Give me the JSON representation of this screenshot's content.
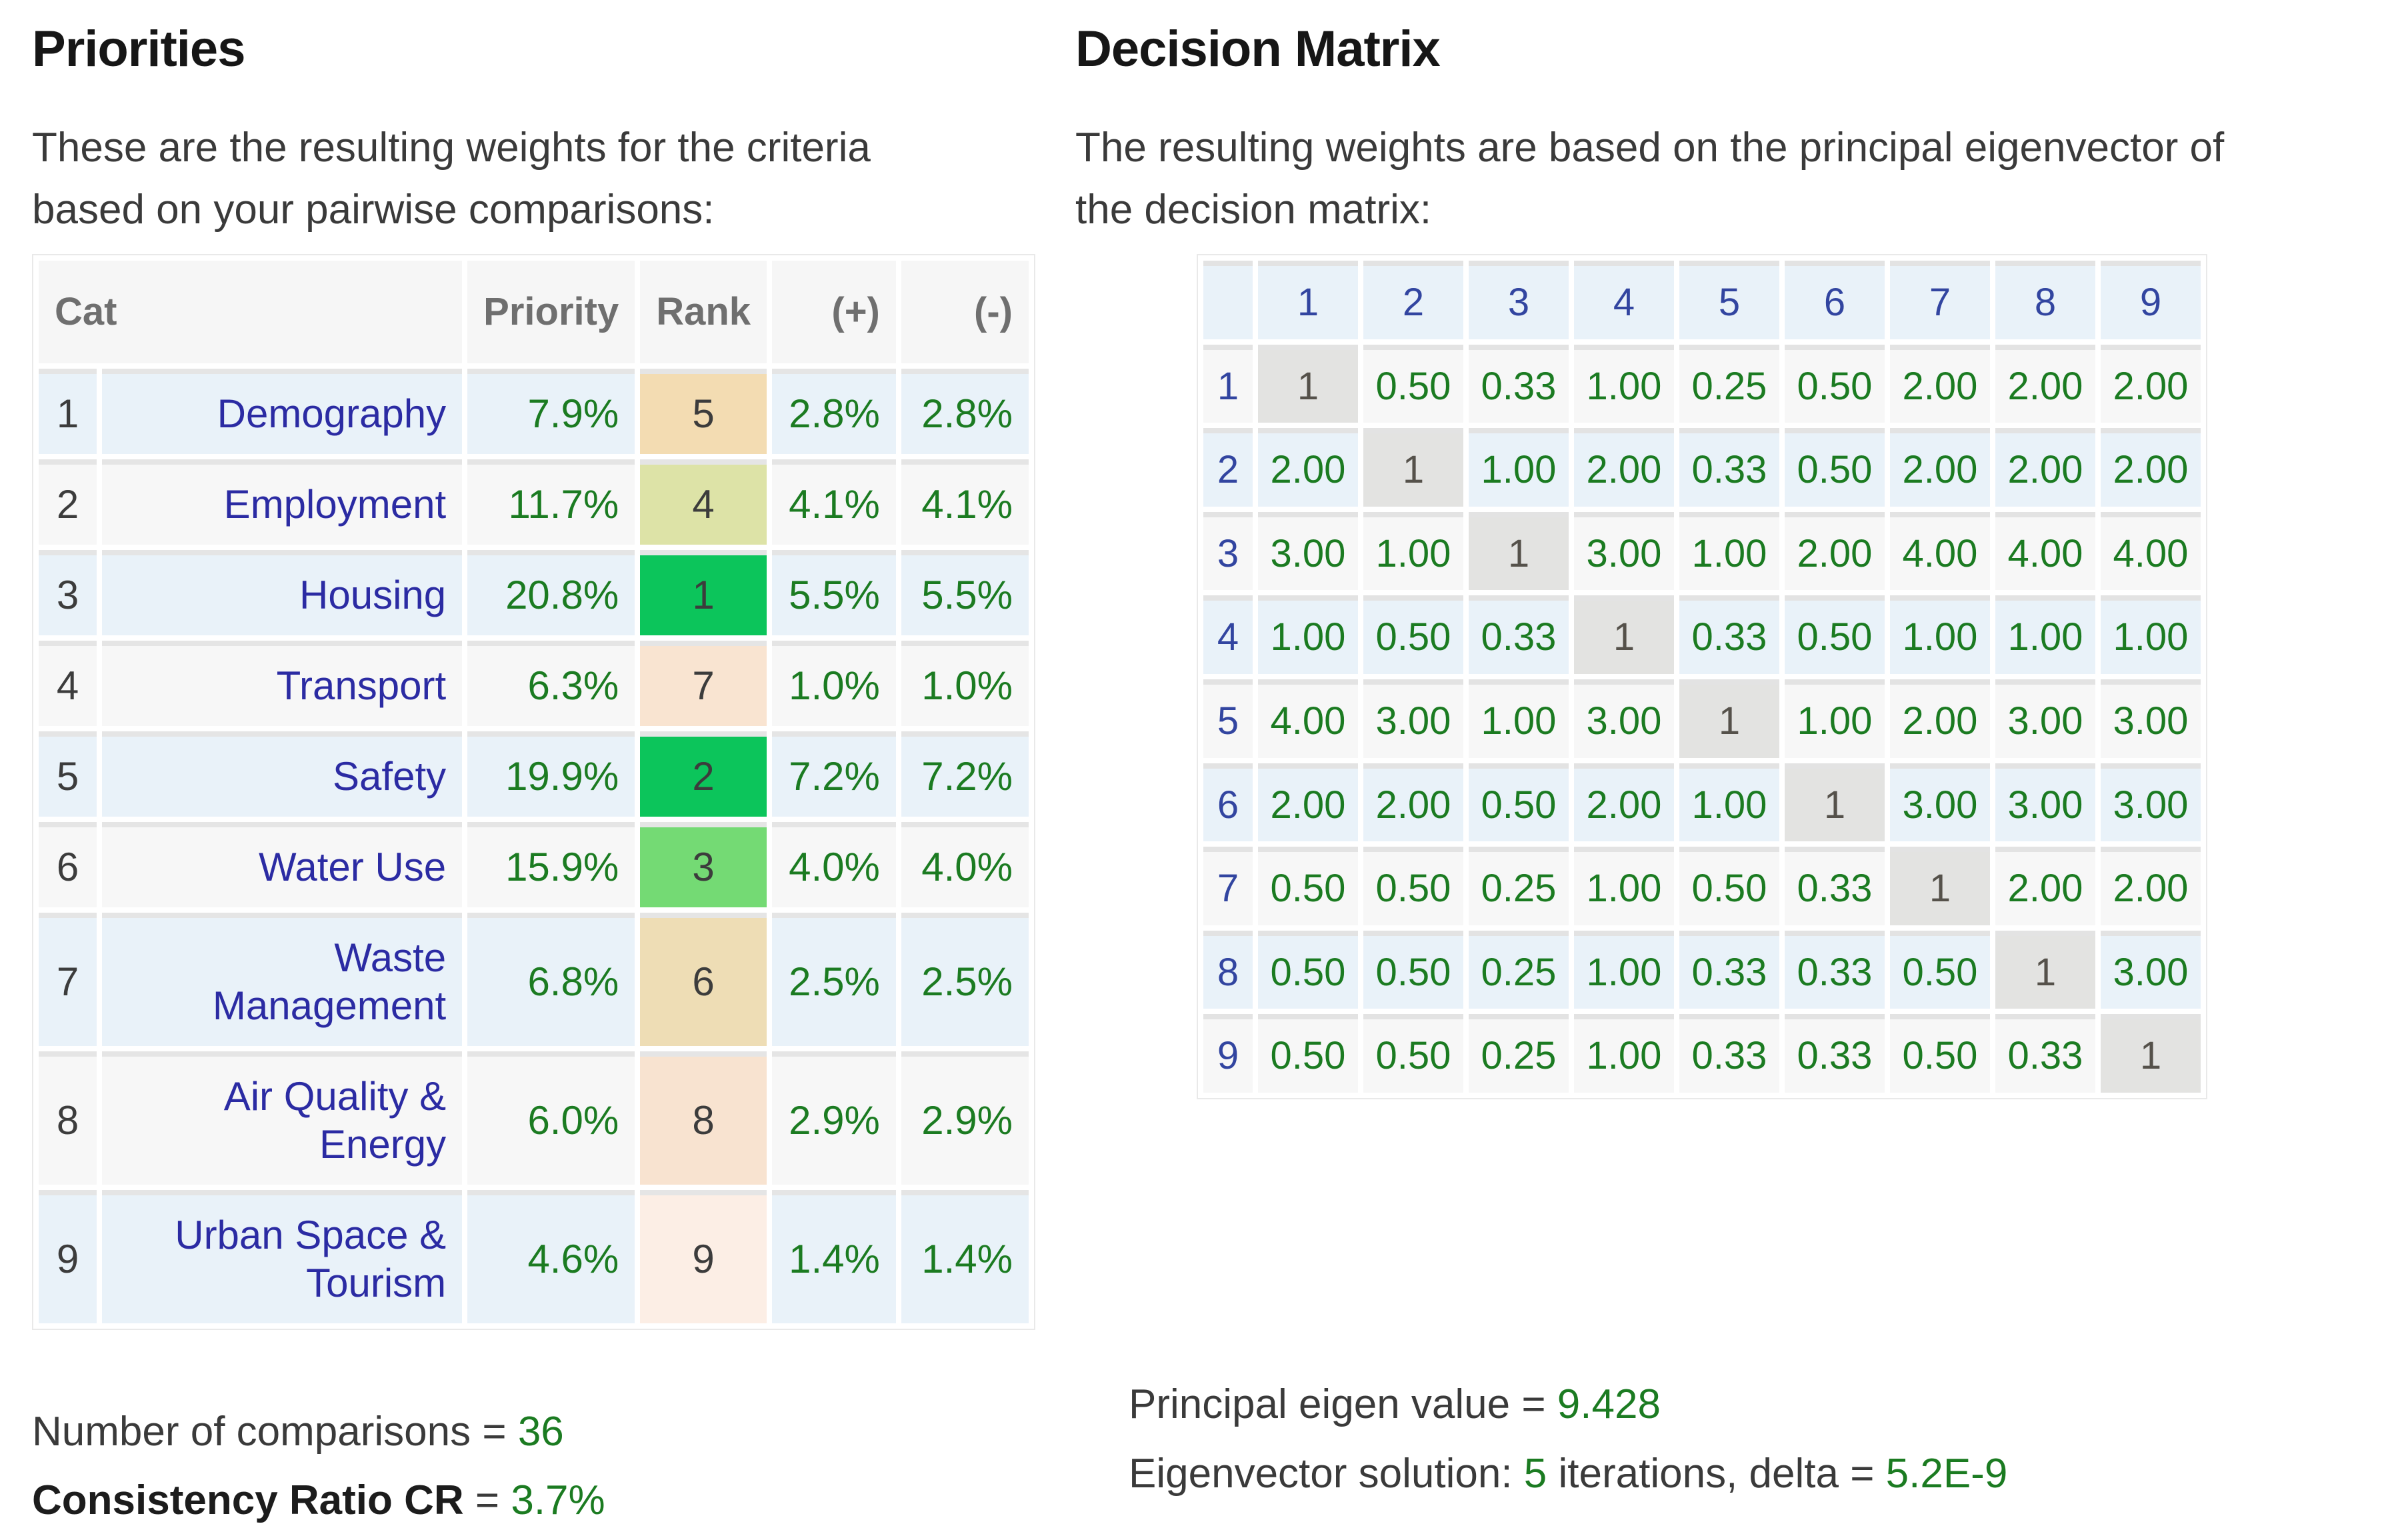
{
  "colors": {
    "value_green": "#1b7b21",
    "category_blue": "#2b2ba3",
    "matrix_label_blue": "#3245a0",
    "row_blue_bg": "#e9f2f9",
    "row_gray_bg": "#f7f7f7",
    "diagonal_bg": "#e3e3e1",
    "header_bg": "#f6f6f6",
    "header_text": "#6f6f6f"
  },
  "left": {
    "title": "Priorities",
    "intro_line1": "These are the resulting weights for the criteria",
    "intro_line2": "based on your pairwise comparisons:",
    "table": {
      "headers": {
        "cat": "Cat",
        "priority": "Priority",
        "rank": "Rank",
        "plus": "(+)",
        "minus": "(-)"
      },
      "rows": [
        {
          "num": "1",
          "name": "Demography",
          "priority": "7.9%",
          "rank": "5",
          "plus": "2.8%",
          "minus": "2.8%",
          "rank_color": "#f3dcb2"
        },
        {
          "num": "2",
          "name": "Employment",
          "priority": "11.7%",
          "rank": "4",
          "plus": "4.1%",
          "minus": "4.1%",
          "rank_color": "#dde3a7"
        },
        {
          "num": "3",
          "name": "Housing",
          "priority": "20.8%",
          "rank": "1",
          "plus": "5.5%",
          "minus": "5.5%",
          "rank_color": "#0cc55b"
        },
        {
          "num": "4",
          "name": "Transport",
          "priority": "6.3%",
          "rank": "7",
          "plus": "1.0%",
          "minus": "1.0%",
          "rank_color": "#f9e4d1"
        },
        {
          "num": "5",
          "name": "Safety",
          "priority": "19.9%",
          "rank": "2",
          "plus": "7.2%",
          "minus": "7.2%",
          "rank_color": "#0cc55b"
        },
        {
          "num": "6",
          "name": "Water Use",
          "priority": "15.9%",
          "rank": "3",
          "plus": "4.0%",
          "minus": "4.0%",
          "rank_color": "#74da74"
        },
        {
          "num": "7",
          "name": "Waste Management",
          "priority": "6.8%",
          "rank": "6",
          "plus": "2.5%",
          "minus": "2.5%",
          "rank_color": "#eeddb5"
        },
        {
          "num": "8",
          "name": "Air Quality & Energy",
          "priority": "6.0%",
          "rank": "8",
          "plus": "2.9%",
          "minus": "2.9%",
          "rank_color": "#f8e3d0"
        },
        {
          "num": "9",
          "name": "Urban Space & Tourism",
          "priority": "4.6%",
          "rank": "9",
          "plus": "1.4%",
          "minus": "1.4%",
          "rank_color": "#fceee5"
        }
      ]
    },
    "stats": [
      {
        "parts": [
          {
            "t": "Number of comparisons = ",
            "c": "plain"
          },
          {
            "t": "36",
            "c": "green"
          }
        ]
      },
      {
        "parts": [
          {
            "t": "Consistency Ratio CR",
            "c": "bold"
          },
          {
            "t": " = ",
            "c": "plain"
          },
          {
            "t": "3.7%",
            "c": "green"
          }
        ]
      }
    ]
  },
  "right": {
    "title": "Decision Matrix",
    "intro_line1": "The resulting weights are based on the principal eigenvector of",
    "intro_line2": "the decision matrix:",
    "matrix": {
      "col_headers": [
        "1",
        "2",
        "3",
        "4",
        "5",
        "6",
        "7",
        "8",
        "9"
      ],
      "rows": [
        {
          "label": "1",
          "values": [
            "1",
            "0.50",
            "0.33",
            "1.00",
            "0.25",
            "0.50",
            "2.00",
            "2.00",
            "2.00"
          ]
        },
        {
          "label": "2",
          "values": [
            "2.00",
            "1",
            "1.00",
            "2.00",
            "0.33",
            "0.50",
            "2.00",
            "2.00",
            "2.00"
          ]
        },
        {
          "label": "3",
          "values": [
            "3.00",
            "1.00",
            "1",
            "3.00",
            "1.00",
            "2.00",
            "4.00",
            "4.00",
            "4.00"
          ]
        },
        {
          "label": "4",
          "values": [
            "1.00",
            "0.50",
            "0.33",
            "1",
            "0.33",
            "0.50",
            "1.00",
            "1.00",
            "1.00"
          ]
        },
        {
          "label": "5",
          "values": [
            "4.00",
            "3.00",
            "1.00",
            "3.00",
            "1",
            "1.00",
            "2.00",
            "3.00",
            "3.00"
          ]
        },
        {
          "label": "6",
          "values": [
            "2.00",
            "2.00",
            "0.50",
            "2.00",
            "1.00",
            "1",
            "3.00",
            "3.00",
            "3.00"
          ]
        },
        {
          "label": "7",
          "values": [
            "0.50",
            "0.50",
            "0.25",
            "1.00",
            "0.50",
            "0.33",
            "1",
            "2.00",
            "2.00"
          ]
        },
        {
          "label": "8",
          "values": [
            "0.50",
            "0.50",
            "0.25",
            "1.00",
            "0.33",
            "0.33",
            "0.50",
            "1",
            "3.00"
          ]
        },
        {
          "label": "9",
          "values": [
            "0.50",
            "0.50",
            "0.25",
            "1.00",
            "0.33",
            "0.33",
            "0.50",
            "0.33",
            "1"
          ]
        }
      ]
    },
    "stats": [
      {
        "parts": [
          {
            "t": "Principal eigen value = ",
            "c": "plain"
          },
          {
            "t": "9.428",
            "c": "green"
          }
        ]
      },
      {
        "parts": [
          {
            "t": "Eigenvector solution: ",
            "c": "plain"
          },
          {
            "t": "5",
            "c": "green"
          },
          {
            "t": " iterations, delta = ",
            "c": "plain"
          },
          {
            "t": "5.2E-9",
            "c": "green"
          }
        ]
      }
    ]
  }
}
